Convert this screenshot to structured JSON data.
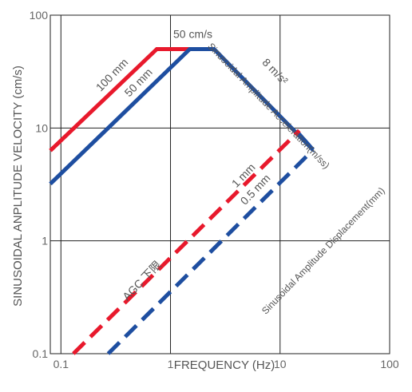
{
  "page": {
    "corner_note": ""
  },
  "chart_data": {
    "type": "line",
    "scale": "log-log",
    "xlabel": "FREQUENCY (Hz)",
    "ylabel": "SINUSOIDAL ANPLITUDE VELOCITY (cm/s)",
    "xlim": [
      0.08,
      100
    ],
    "ylim": [
      0.1,
      100
    ],
    "x_ticks": [
      0.1,
      1,
      10,
      100
    ],
    "x_tick_labels": [
      "0.1",
      "1",
      "10",
      "100"
    ],
    "y_ticks": [
      0.1,
      1,
      10,
      100
    ],
    "y_tick_labels": [
      "0.1",
      "1",
      "10",
      "100"
    ],
    "grid": true,
    "colors": {
      "red": "#e8192c",
      "blue": "#1e4ea0",
      "grid": "#222222",
      "text": "#555555"
    },
    "series": [
      {
        "color": "red",
        "style": "solid",
        "x": [
          0.08,
          0.75,
          1.6
        ],
        "y": [
          6.3,
          50,
          50
        ]
      },
      {
        "color": "blue",
        "style": "solid",
        "x": [
          0.08,
          1.5,
          2.5,
          20,
          14
        ],
        "y": [
          3.2,
          50,
          50,
          6.4,
          9.5
        ]
      },
      {
        "color": "red",
        "style": "dashed",
        "x": [
          0.13,
          15
        ],
        "y": [
          0.1,
          9.5
        ]
      },
      {
        "color": "blue",
        "style": "dashed",
        "x": [
          0.27,
          20
        ],
        "y": [
          0.1,
          6.4
        ]
      }
    ],
    "annotations": [
      {
        "id": "lbl-100mm",
        "text": "100 mm",
        "x": 0.31,
        "y": 28,
        "angle": -46
      },
      {
        "id": "lbl-50mm",
        "text": "50 mm",
        "x": 0.54,
        "y": 24,
        "angle": -46
      },
      {
        "id": "lbl-50cms",
        "text": "50 cm/s",
        "x": 1.6,
        "y": 63,
        "angle": 0
      },
      {
        "id": "lbl-8ms2",
        "text": "8 m/s²",
        "x": 8.5,
        "y": 30,
        "angle": 46
      },
      {
        "id": "lbl-accel",
        "text": "Sinusoidal Amplitude Acceleration(m/ss)",
        "x": 7.5,
        "y": 15,
        "angle": 46
      },
      {
        "id": "lbl-1mm",
        "text": "1 mm",
        "x": 4.9,
        "y": 3.6,
        "angle": -46
      },
      {
        "id": "lbl-05mm",
        "text": "0.5 mm",
        "x": 6.3,
        "y": 2.7,
        "angle": -46
      },
      {
        "id": "lbl-agc",
        "text": "AGC 下限",
        "x": 0.58,
        "y": 0.42,
        "angle": -46
      },
      {
        "id": "lbl-disp",
        "text": "Sinusoidal Amplitude Displacement(mm)",
        "x": 26,
        "y": 0.78,
        "angle": -46
      }
    ]
  }
}
